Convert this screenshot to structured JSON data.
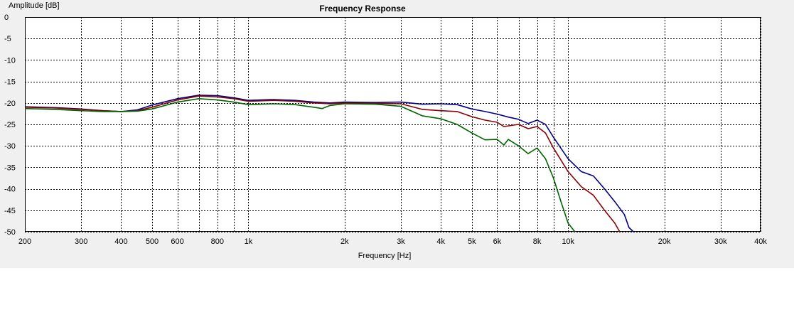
{
  "chart_data": {
    "type": "line",
    "title": "Frequency Response",
    "xlabel": "Frequency [Hz]",
    "ylabel": "Amplitude [dB]",
    "x_scale": "log",
    "xlim": [
      200,
      45000
    ],
    "ylim": [
      -50,
      0
    ],
    "grid": true,
    "x_major_ticks": [
      200,
      300,
      400,
      500,
      600,
      800,
      1000,
      2000,
      3000,
      4000,
      5000,
      6000,
      8000,
      10000,
      20000,
      30000,
      40000
    ],
    "x_tick_labels": [
      "200",
      "300",
      "400",
      "500",
      "600",
      "800",
      "1k",
      "2k",
      "3k",
      "4k",
      "5k",
      "6k",
      "8k",
      "10k",
      "20k",
      "30k",
      "40k"
    ],
    "x_grid_lines": [
      200,
      300,
      400,
      500,
      600,
      700,
      800,
      900,
      1000,
      2000,
      3000,
      4000,
      5000,
      6000,
      7000,
      8000,
      9000,
      10000,
      20000,
      30000,
      40000
    ],
    "y_ticks": [
      0,
      -5,
      -10,
      -15,
      -20,
      -25,
      -30,
      -35,
      -40,
      -45,
      -50
    ],
    "series": [
      {
        "color": "#00008b",
        "points": [
          [
            200,
            -20.9
          ],
          [
            250,
            -21.1
          ],
          [
            300,
            -21.4
          ],
          [
            350,
            -21.8
          ],
          [
            400,
            -22.0
          ],
          [
            450,
            -21.6
          ],
          [
            500,
            -20.5
          ],
          [
            600,
            -19.0
          ],
          [
            700,
            -18.2
          ],
          [
            800,
            -18.3
          ],
          [
            900,
            -18.8
          ],
          [
            1000,
            -19.4
          ],
          [
            1200,
            -19.2
          ],
          [
            1400,
            -19.4
          ],
          [
            1600,
            -19.8
          ],
          [
            1800,
            -20.0
          ],
          [
            2000,
            -19.8
          ],
          [
            2500,
            -19.9
          ],
          [
            3000,
            -19.8
          ],
          [
            3500,
            -20.3
          ],
          [
            4000,
            -20.2
          ],
          [
            4500,
            -20.4
          ],
          [
            5000,
            -21.4
          ],
          [
            5500,
            -22.0
          ],
          [
            6000,
            -22.6
          ],
          [
            6500,
            -23.3
          ],
          [
            7000,
            -23.8
          ],
          [
            7500,
            -24.8
          ],
          [
            8000,
            -24.0
          ],
          [
            8500,
            -25.0
          ],
          [
            9000,
            -28.0
          ],
          [
            10000,
            -33.0
          ],
          [
            11000,
            -36.0
          ],
          [
            12000,
            -37.0
          ],
          [
            13000,
            -40.0
          ],
          [
            14000,
            -43.0
          ],
          [
            15000,
            -46.0
          ],
          [
            15500,
            -49.0
          ],
          [
            16000,
            -50.0
          ]
        ]
      },
      {
        "color": "#8b0000",
        "points": [
          [
            200,
            -21.0
          ],
          [
            250,
            -21.2
          ],
          [
            300,
            -21.5
          ],
          [
            350,
            -21.8
          ],
          [
            400,
            -22.0
          ],
          [
            450,
            -21.8
          ],
          [
            500,
            -21.0
          ],
          [
            600,
            -19.3
          ],
          [
            700,
            -18.4
          ],
          [
            800,
            -18.6
          ],
          [
            900,
            -19.0
          ],
          [
            1000,
            -19.6
          ],
          [
            1200,
            -19.4
          ],
          [
            1400,
            -19.6
          ],
          [
            1600,
            -20.0
          ],
          [
            1800,
            -20.2
          ],
          [
            2000,
            -20.0
          ],
          [
            2500,
            -20.1
          ],
          [
            3000,
            -20.2
          ],
          [
            3500,
            -21.5
          ],
          [
            4000,
            -21.8
          ],
          [
            4500,
            -22.0
          ],
          [
            5000,
            -23.2
          ],
          [
            5500,
            -24.0
          ],
          [
            6000,
            -24.5
          ],
          [
            6300,
            -25.5
          ],
          [
            7000,
            -25.0
          ],
          [
            7500,
            -26.0
          ],
          [
            8000,
            -25.5
          ],
          [
            8500,
            -27.0
          ],
          [
            9000,
            -30.5
          ],
          [
            10000,
            -36.0
          ],
          [
            11000,
            -39.5
          ],
          [
            12000,
            -41.5
          ],
          [
            13000,
            -45.0
          ],
          [
            14000,
            -48.0
          ],
          [
            14500,
            -50.0
          ]
        ]
      },
      {
        "color": "#006400",
        "points": [
          [
            200,
            -21.3
          ],
          [
            250,
            -21.5
          ],
          [
            300,
            -21.8
          ],
          [
            350,
            -22.0
          ],
          [
            400,
            -22.0
          ],
          [
            450,
            -21.9
          ],
          [
            500,
            -21.4
          ],
          [
            600,
            -19.8
          ],
          [
            700,
            -19.0
          ],
          [
            800,
            -19.3
          ],
          [
            900,
            -19.8
          ],
          [
            1000,
            -20.4
          ],
          [
            1200,
            -20.2
          ],
          [
            1400,
            -20.4
          ],
          [
            1600,
            -21.0
          ],
          [
            1700,
            -21.3
          ],
          [
            1800,
            -20.6
          ],
          [
            2000,
            -20.2
          ],
          [
            2500,
            -20.3
          ],
          [
            3000,
            -20.8
          ],
          [
            3500,
            -23.0
          ],
          [
            4000,
            -23.7
          ],
          [
            4500,
            -25.0
          ],
          [
            5000,
            -27.0
          ],
          [
            5500,
            -28.6
          ],
          [
            6000,
            -28.5
          ],
          [
            6300,
            -29.8
          ],
          [
            6500,
            -28.5
          ],
          [
            7000,
            -30.0
          ],
          [
            7500,
            -31.8
          ],
          [
            8000,
            -30.5
          ],
          [
            8500,
            -33.0
          ],
          [
            9000,
            -37.5
          ],
          [
            9500,
            -43.0
          ],
          [
            10000,
            -48.0
          ],
          [
            10500,
            -50.0
          ]
        ]
      }
    ]
  }
}
